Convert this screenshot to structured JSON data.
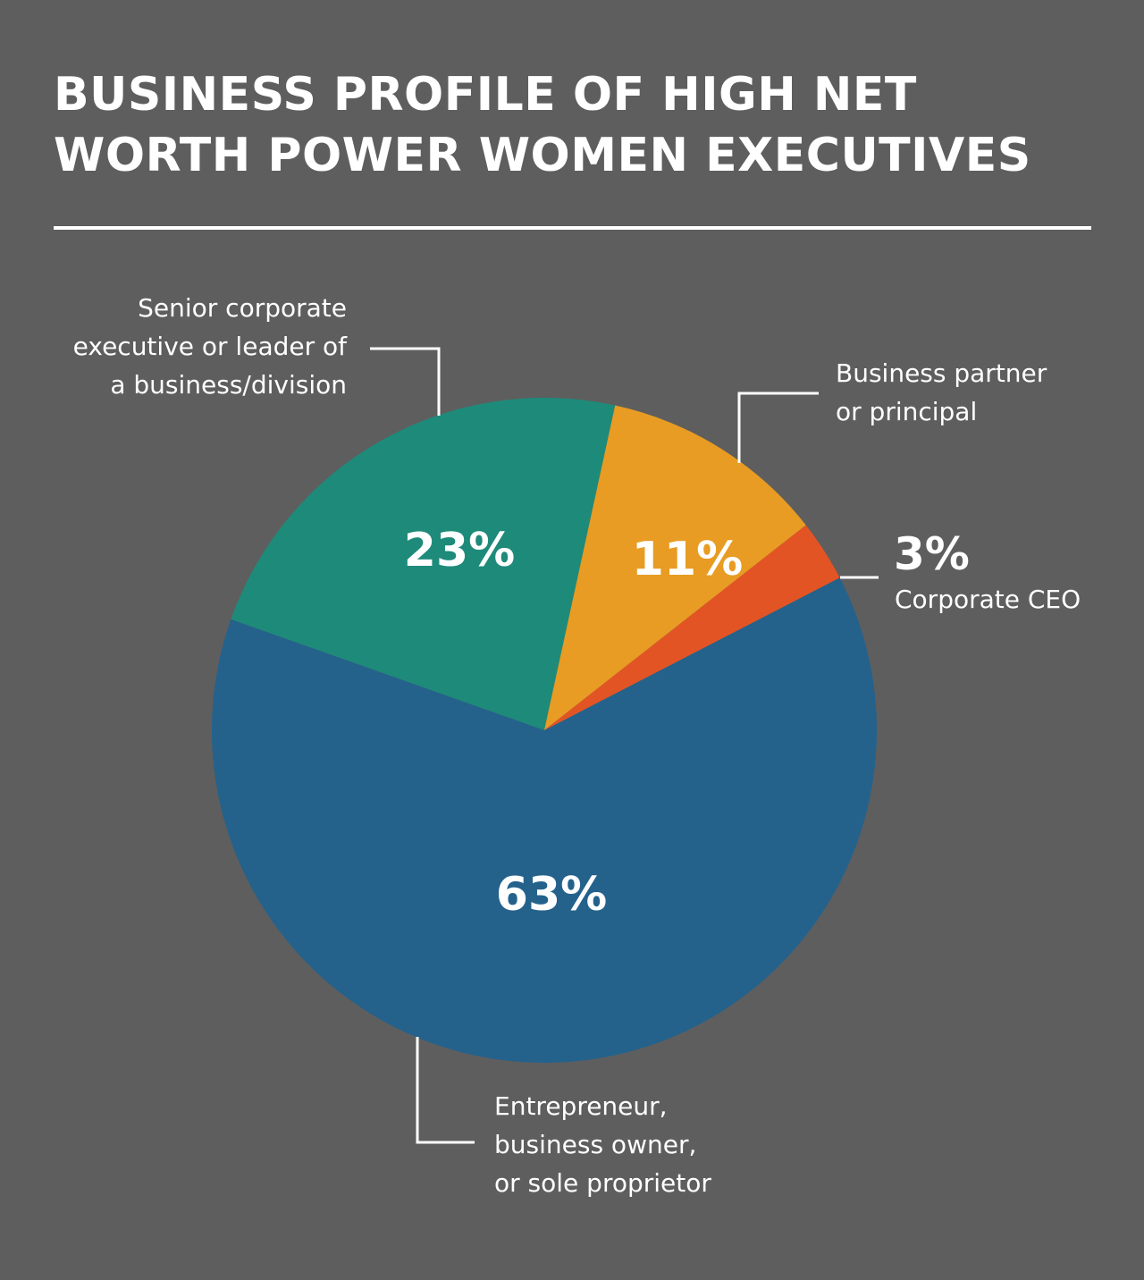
{
  "chart_data": {
    "type": "pie",
    "title": "BUSINESS PROFILE OF HIGH NET WORTH POWER WOMEN EXECUTIVES",
    "slices": [
      {
        "label": "Senior corporate executive or leader of a business/division",
        "value": 23,
        "value_label": "23%",
        "color": "#1e8a7a"
      },
      {
        "label": "Business partner or principal",
        "value": 11,
        "value_label": "11%",
        "color": "#e89c23"
      },
      {
        "label": "Corporate CEO",
        "value": 3,
        "value_label": "3%",
        "color": "#e35425"
      },
      {
        "label": "Entrepreneur, business owner, or sole proprietor",
        "value": 63,
        "value_label": "63%",
        "color": "#24628c"
      }
    ]
  },
  "labels": {
    "senior": "Senior corporate\nexecutive or leader of\na business/division",
    "partner": "Business partner\nor principal",
    "ceo": "Corporate CEO",
    "entrepreneur": "Entrepreneur,\nbusiness owner,\nor sole proprietor"
  },
  "colors": {
    "background": "#5e5e5e",
    "text": "#ffffff"
  }
}
